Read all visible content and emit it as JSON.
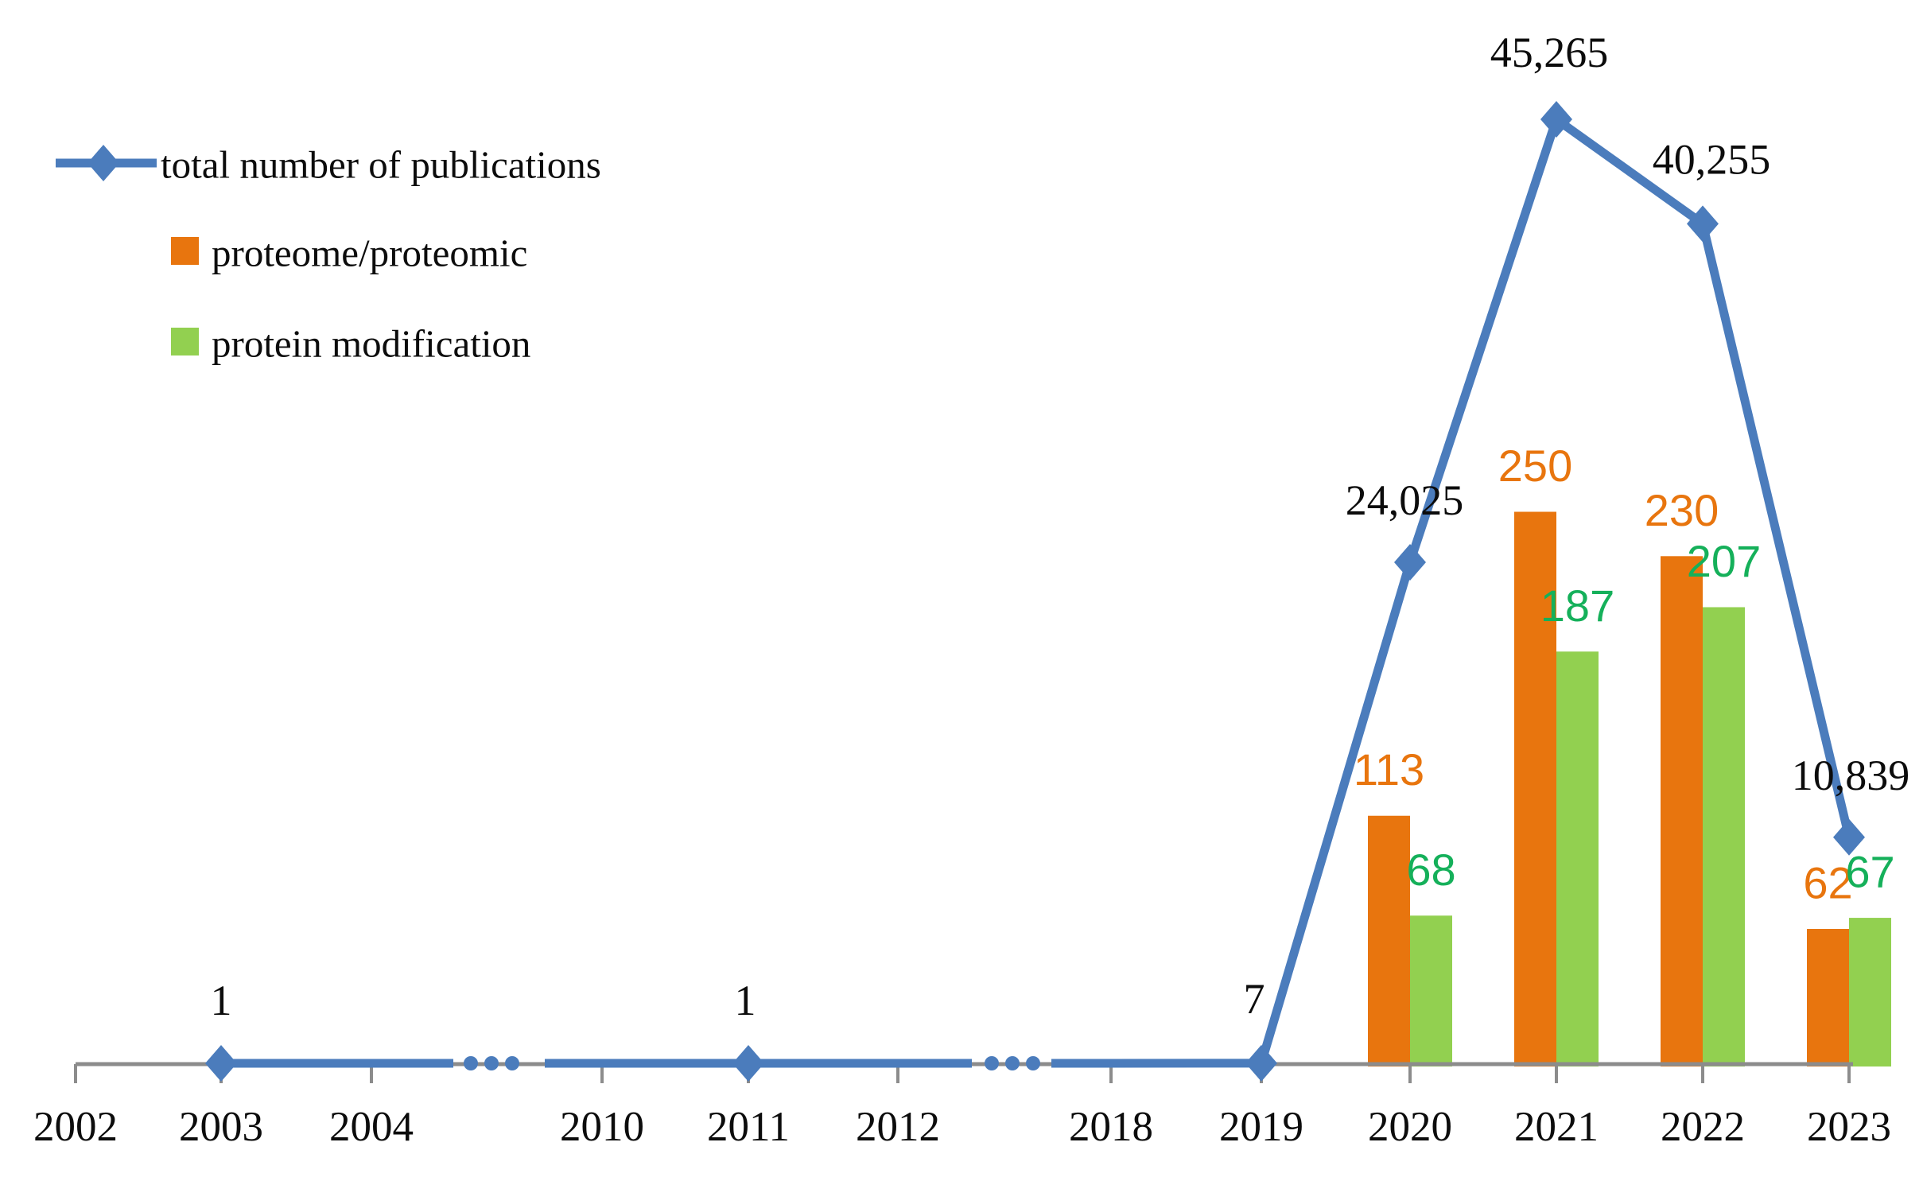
{
  "figure": {
    "background": "#FFFFFF"
  },
  "legend": {
    "items": [
      {
        "label": "total number of publications",
        "series": "line",
        "color": "#4B7CBC"
      },
      {
        "label": "proteome/proteomic",
        "series": "bar",
        "color": "#E8750E"
      },
      {
        "label": "protein modification",
        "series": "bar",
        "color": "#92D050"
      }
    ]
  },
  "chart_data": {
    "type": "combo line+bar",
    "categories": [
      "2002",
      "2003",
      "2004",
      "2010",
      "2011",
      "2012",
      "2018",
      "2019",
      "2020",
      "2021",
      "2022",
      "2023"
    ],
    "x_axis_breaks": [
      "between 2004 and 2010",
      "between 2012 and 2018"
    ],
    "series": [
      {
        "name": "total number of publications",
        "type": "line",
        "color": "#4B7CBC",
        "marker": "diamond",
        "label_color": "#0c0c0c",
        "data": {
          "2003": 1,
          "2011": 1,
          "2019": 7,
          "2020": 24025,
          "2021": 45265,
          "2022": 40255,
          "2023": 10839
        },
        "data_labels": {
          "2003": "1",
          "2011": "1",
          "2019": "7",
          "2020": "24,025",
          "2021": "45,265",
          "2022": "40,255",
          "2023": "10,839"
        }
      },
      {
        "name": "proteome/proteomic",
        "type": "bar",
        "color": "#E8750E",
        "label_color": "#E8750E",
        "data": {
          "2020": 113,
          "2021": 250,
          "2022": 230,
          "2023": 62
        },
        "data_labels": {
          "2020": "113",
          "2021": "250",
          "2022": "230",
          "2023": "62"
        }
      },
      {
        "name": "protein modification",
        "type": "bar",
        "color": "#92D050",
        "label_color": "#15B05A",
        "data": {
          "2020": 68,
          "2021": 187,
          "2022": 207,
          "2023": 67
        },
        "data_labels": {
          "2020": "68",
          "2021": "187",
          "2022": "207",
          "2023": "67"
        }
      }
    ],
    "line_axis": {
      "min": 0,
      "max": 45265
    },
    "bar_axis": {
      "min": 0,
      "max": 250
    },
    "grid": false,
    "legend_position": "top-left"
  }
}
